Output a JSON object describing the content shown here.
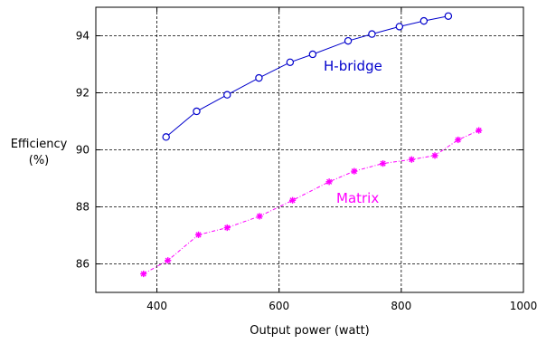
{
  "chart_data": {
    "type": "line",
    "xlabel": "Output power (watt)",
    "ylabel_lines": [
      "Efficiency",
      "(%)"
    ],
    "xlim": [
      300,
      1000
    ],
    "ylim": [
      85,
      95
    ],
    "x_ticks": [
      400,
      600,
      800,
      1000
    ],
    "y_ticks": [
      86,
      88,
      90,
      92,
      94
    ],
    "grid": true,
    "series": [
      {
        "name": "H-bridge",
        "color": "#0000cc",
        "marker": "circle",
        "line_style": "solid",
        "points": [
          [
            415,
            90.45
          ],
          [
            465,
            91.35
          ],
          [
            515,
            91.93
          ],
          [
            567,
            92.52
          ],
          [
            618,
            93.07
          ],
          [
            655,
            93.35
          ],
          [
            713,
            93.82
          ],
          [
            752,
            94.06
          ],
          [
            797,
            94.32
          ],
          [
            837,
            94.52
          ],
          [
            877,
            94.69
          ]
        ]
      },
      {
        "name": "Matrix",
        "color": "#ff00ff",
        "marker": "asterisk",
        "line_style": "dashdot",
        "points": [
          [
            378,
            85.65
          ],
          [
            418,
            86.12
          ],
          [
            468,
            87.02
          ],
          [
            515,
            87.27
          ],
          [
            568,
            87.67
          ],
          [
            622,
            88.23
          ],
          [
            682,
            88.88
          ],
          [
            723,
            89.25
          ],
          [
            770,
            89.52
          ],
          [
            817,
            89.66
          ],
          [
            855,
            89.8
          ],
          [
            893,
            90.35
          ],
          [
            927,
            90.68
          ]
        ]
      }
    ]
  }
}
